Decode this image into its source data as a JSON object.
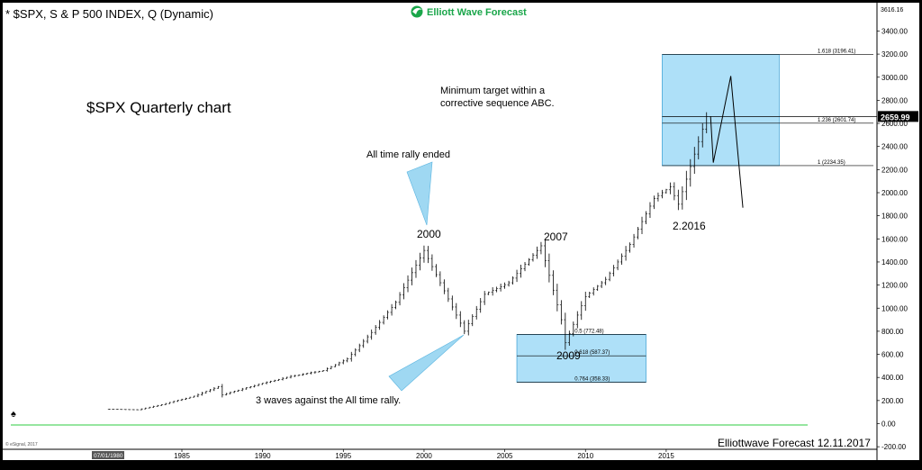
{
  "header": {
    "symbol_title": "* $SPX, S & P 500 INDEX, Q (Dynamic)",
    "brand": "Elliott Wave Forecast",
    "copyright": "© eSignal, 2017"
  },
  "annotations": {
    "chart_title": "$SPX Quarterly chart",
    "target_note_line1": "Minimum target within a",
    "target_note_line2": "corrective sequence ABC.",
    "rally_ended": "All time rally ended",
    "label_2000": "2000",
    "label_2007": "2007",
    "label_2009": "2009",
    "label_2016": "2.2016",
    "three_waves": "3 waves against the All time rally.",
    "footer": "Elliottwave Forecast 12.11.2017"
  },
  "colors": {
    "background": "#ffffff",
    "bars": "#000000",
    "box_fill": "#aee0f8",
    "box_stroke": "#4aa8d8",
    "triangle_fill": "#9fd8f2",
    "zero_line": "#2ecc40",
    "brand_green": "#1aa64a"
  },
  "chart_data": {
    "type": "ohlc",
    "x_ticks": [
      "1985",
      "1990",
      "1995",
      "2000",
      "2005",
      "2010",
      "2015"
    ],
    "x_start_label": "07/01/1980",
    "y_ticks": [
      3400,
      3200,
      3000,
      2800,
      2600,
      2400,
      2200,
      2000,
      1800,
      1600,
      1400,
      1200,
      1000,
      800,
      600,
      400,
      200,
      0,
      -200
    ],
    "y_tick_labels": [
      "3400.00",
      "3200.00",
      "3000.00",
      "2800.00",
      "2600.00",
      "2400.00",
      "2200.00",
      "2000.00",
      "1800.00",
      "1600.00",
      "1400.00",
      "1200.00",
      "1000.00",
      "800.00",
      "600.00",
      "400.00",
      "200.00",
      "0.00",
      "-200.00"
    ],
    "ylim": [
      -200,
      3600
    ],
    "top_scale_label": "3616.16",
    "last_price_label": "2659.99",
    "last_price": 2659.99,
    "quarterly_closes": [
      {
        "date": "1980-07",
        "close": 125
      },
      {
        "date": "1982-07",
        "close": 120
      },
      {
        "date": "1984-01",
        "close": 165
      },
      {
        "date": "1986-01",
        "close": 238
      },
      {
        "date": "1987-07",
        "close": 320
      },
      {
        "date": "1987-10",
        "close": 250
      },
      {
        "date": "1990-01",
        "close": 340
      },
      {
        "date": "1992-01",
        "close": 410
      },
      {
        "date": "1994-01",
        "close": 460
      },
      {
        "date": "1995-07",
        "close": 560
      },
      {
        "date": "1997-01",
        "close": 790
      },
      {
        "date": "1998-07",
        "close": 1050
      },
      {
        "date": "2000-04",
        "close": 1500
      },
      {
        "date": "2001-07",
        "close": 1150
      },
      {
        "date": "2002-10",
        "close": 800
      },
      {
        "date": "2004-01",
        "close": 1120
      },
      {
        "date": "2005-07",
        "close": 1220
      },
      {
        "date": "2007-07",
        "close": 1540
      },
      {
        "date": "2008-10",
        "close": 900
      },
      {
        "date": "2009-01",
        "close": 700
      },
      {
        "date": "2010-04",
        "close": 1100
      },
      {
        "date": "2011-07",
        "close": 1250
      },
      {
        "date": "2013-01",
        "close": 1550
      },
      {
        "date": "2014-07",
        "close": 1950
      },
      {
        "date": "2015-07",
        "close": 2050
      },
      {
        "date": "2016-01",
        "close": 1900
      },
      {
        "date": "2017-10",
        "close": 2659.99
      }
    ],
    "projection_path": [
      {
        "date": "2017-10",
        "value": 2659.99
      },
      {
        "date": "2017-12",
        "value": 2260
      },
      {
        "date": "2019-01",
        "value": 3010
      },
      {
        "date": "2019-10",
        "value": 1870
      }
    ],
    "fib_levels": [
      {
        "ratio": "1.618",
        "value": 3196.41,
        "label": "1.618 (3196.41)"
      },
      {
        "ratio": "1.236",
        "value": 2601.74,
        "label": "1.236 (2601.74)"
      },
      {
        "ratio": "1",
        "value": 2234.35,
        "label": "1 (2234.35)"
      },
      {
        "ratio": "0.5",
        "value": 772.48,
        "label": "0.5 (772.48)"
      },
      {
        "ratio": "0.618",
        "value": 587.37,
        "label": "0.618 (587.37)"
      },
      {
        "ratio": "0.764",
        "value": 358.33,
        "label": "0.764 (358.33)"
      }
    ],
    "target_zones": [
      {
        "from": "2014-10",
        "to": "2022-01",
        "low": 2234.35,
        "high": 3196.41
      },
      {
        "from": "2005-10",
        "to": "2013-10",
        "low": 358.33,
        "high": 772.48
      }
    ]
  }
}
